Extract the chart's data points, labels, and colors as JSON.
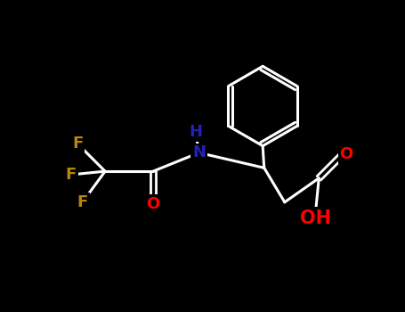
{
  "background_color": "#000000",
  "bond_color": "#ffffff",
  "atom_colors": {
    "F": "#b8860b",
    "N": "#2222bb",
    "H": "#2222bb",
    "O": "#ff0000",
    "C": "#ffffff"
  },
  "font_size_atoms": 13,
  "lw": 2.2
}
